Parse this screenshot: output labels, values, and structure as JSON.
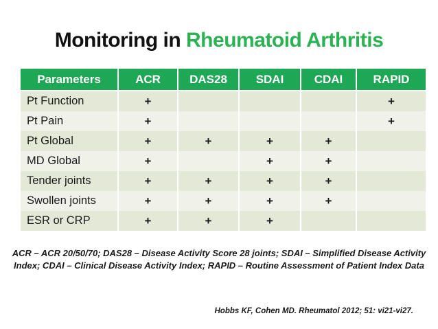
{
  "title": {
    "prefix": "Monitoring in ",
    "highlight": "Rheumatoid Arthritis"
  },
  "table": {
    "columns": [
      "Parameters",
      "ACR",
      "DAS28",
      "SDAI",
      "CDAI",
      "RAPID"
    ],
    "rows": [
      {
        "label": "Pt Function",
        "marks": [
          "+",
          "",
          "",
          "",
          "+"
        ]
      },
      {
        "label": "Pt Pain",
        "marks": [
          "+",
          "",
          "",
          "",
          "+"
        ]
      },
      {
        "label": "Pt Global",
        "marks": [
          "+",
          "+",
          "+",
          "+",
          ""
        ]
      },
      {
        "label": "MD Global",
        "marks": [
          "+",
          "",
          "+",
          "+",
          ""
        ]
      },
      {
        "label": "Tender joints",
        "marks": [
          "+",
          "+",
          "+",
          "+",
          ""
        ]
      },
      {
        "label": "Swollen joints",
        "marks": [
          "+",
          "+",
          "+",
          "+",
          ""
        ]
      },
      {
        "label": "ESR or CRP",
        "marks": [
          "+",
          "+",
          "+",
          "",
          ""
        ]
      }
    ]
  },
  "footnote": {
    "line1": "ACR – ACR 20/50/70; DAS28 – Disease Activity Score 28 joints; SDAI – Simplified Disease Activity",
    "line2": "Index; CDAI – Clinical Disease Activity Index; RAPID – Routine Assessment of Patient Index Data"
  },
  "citation": "Hobbs KF, Cohen MD. Rheumatol 2012; 51: vi21-vi27.",
  "colors": {
    "title_green": "#2cb253",
    "header_green": "#1ea855",
    "row_dark": "#e4e9d7",
    "row_light": "#f0f2e9"
  }
}
